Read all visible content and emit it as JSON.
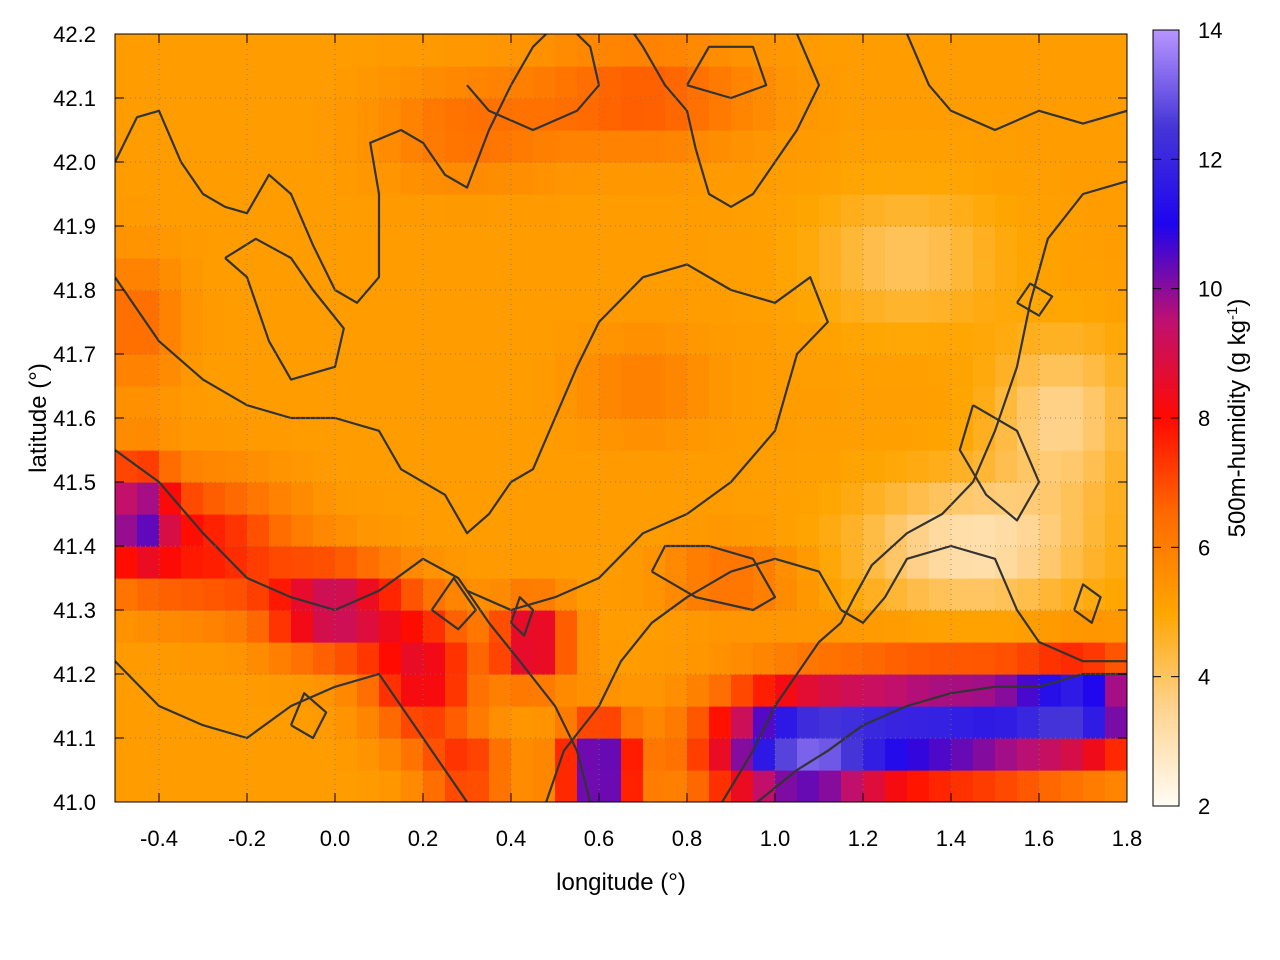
{
  "chart_data": {
    "type": "heatmap",
    "xlabel": "longitude (°)",
    "ylabel": "latitude (°)",
    "colorbar_label": "500m-humidity (g kg",
    "colorbar_label_sup": "-1",
    "colorbar_label_tail": ")",
    "xlim": [
      -0.5,
      1.8
    ],
    "ylim": [
      41.0,
      42.2
    ],
    "x_ticks": [
      -0.4,
      -0.2,
      0.0,
      0.2,
      0.4,
      0.6,
      0.8,
      1.0,
      1.2,
      1.4,
      1.6,
      1.8
    ],
    "x_tick_labels": [
      "-0.4",
      "-0.2",
      "0.0",
      "0.2",
      "0.4",
      "0.6",
      "0.8",
      "1.0",
      "1.2",
      "1.4",
      "1.6",
      "1.8"
    ],
    "y_ticks": [
      41.0,
      41.1,
      41.2,
      41.3,
      41.4,
      41.5,
      41.6,
      41.7,
      41.8,
      41.9,
      42.0,
      42.1,
      42.2
    ],
    "y_tick_labels": [
      "41.0",
      "41.1",
      "41.2",
      "41.3",
      "41.4",
      "41.5",
      "41.6",
      "41.7",
      "41.8",
      "41.9",
      "42.0",
      "42.1",
      "42.2"
    ],
    "colorbar_range": [
      2,
      14
    ],
    "colorbar_ticks": [
      2,
      4,
      6,
      8,
      10,
      12,
      14
    ],
    "colorbar_tick_labels": [
      "2",
      "4",
      "6",
      "8",
      "10",
      "12",
      "14"
    ],
    "colorbar_stops": [
      {
        "value": 2,
        "color": "#fffcf5"
      },
      {
        "value": 3.5,
        "color": "#ffd491"
      },
      {
        "value": 5,
        "color": "#ffa500"
      },
      {
        "value": 6.5,
        "color": "#ff6a00"
      },
      {
        "value": 8,
        "color": "#ff0a00"
      },
      {
        "value": 9.5,
        "color": "#bf1070"
      },
      {
        "value": 11,
        "color": "#1e05ee"
      },
      {
        "value": 12.5,
        "color": "#4636d7"
      },
      {
        "value": 14,
        "color": "#b895ff"
      }
    ],
    "grid": true,
    "field": {
      "base": 5.2,
      "blobs": [
        {
          "lon": -0.45,
          "lat": 41.45,
          "value": 9.5,
          "rlon": 0.08,
          "rlat": 0.08
        },
        {
          "lon": -0.3,
          "lat": 41.4,
          "value": 7.8,
          "rlon": 0.2,
          "rlat": 0.1
        },
        {
          "lon": 0.0,
          "lat": 41.3,
          "value": 9.5,
          "rlon": 0.15,
          "rlat": 0.07
        },
        {
          "lon": 0.2,
          "lat": 41.2,
          "value": 8.5,
          "rlon": 0.12,
          "rlat": 0.1
        },
        {
          "lon": 0.45,
          "lat": 41.25,
          "value": 9.5,
          "rlon": 0.08,
          "rlat": 0.06
        },
        {
          "lon": 0.6,
          "lat": 41.05,
          "value": 11.5,
          "rlon": 0.08,
          "rlat": 0.07
        },
        {
          "lon": 1.05,
          "lat": 41.08,
          "value": 11.8,
          "rlon": 0.2,
          "rlat": 0.09
        },
        {
          "lon": 1.4,
          "lat": 41.12,
          "value": 11.5,
          "rlon": 0.3,
          "rlat": 0.09
        },
        {
          "lon": 1.7,
          "lat": 41.15,
          "value": 10.5,
          "rlon": 0.15,
          "rlat": 0.07
        },
        {
          "lon": 1.45,
          "lat": 41.4,
          "value": 3.0,
          "rlon": 0.25,
          "rlat": 0.1
        },
        {
          "lon": 1.65,
          "lat": 41.6,
          "value": 3.5,
          "rlon": 0.15,
          "rlat": 0.12
        },
        {
          "lon": 1.3,
          "lat": 41.85,
          "value": 4.0,
          "rlon": 0.2,
          "rlat": 0.1
        },
        {
          "lon": 0.7,
          "lat": 42.1,
          "value": 6.8,
          "rlon": 0.25,
          "rlat": 0.08
        },
        {
          "lon": 0.3,
          "lat": 42.05,
          "value": 6.3,
          "rlon": 0.2,
          "rlat": 0.08
        },
        {
          "lon": -0.45,
          "lat": 41.75,
          "value": 6.5,
          "rlon": 0.1,
          "rlat": 0.1
        },
        {
          "lon": 0.7,
          "lat": 41.65,
          "value": 6.0,
          "rlon": 0.15,
          "rlat": 0.08
        },
        {
          "lon": 0.9,
          "lat": 41.35,
          "value": 6.5,
          "rlon": 0.15,
          "rlat": 0.05
        },
        {
          "lon": 0.3,
          "lat": 41.05,
          "value": 7.5,
          "rlon": 0.1,
          "rlat": 0.05
        }
      ]
    },
    "contours": [
      [
        [
          -0.5,
          42.0
        ],
        [
          -0.45,
          42.07
        ],
        [
          -0.4,
          42.08
        ],
        [
          -0.35,
          42.0
        ],
        [
          -0.3,
          41.95
        ],
        [
          -0.25,
          41.93
        ],
        [
          -0.2,
          41.92
        ],
        [
          -0.15,
          41.98
        ],
        [
          -0.1,
          41.95
        ],
        [
          -0.05,
          41.87
        ],
        [
          0.0,
          41.8
        ],
        [
          0.05,
          41.78
        ],
        [
          0.1,
          41.82
        ],
        [
          0.1,
          41.95
        ],
        [
          0.08,
          42.03
        ],
        [
          0.15,
          42.05
        ],
        [
          0.2,
          42.03
        ],
        [
          0.25,
          41.98
        ],
        [
          0.3,
          41.96
        ],
        [
          0.35,
          42.05
        ],
        [
          0.4,
          42.12
        ],
        [
          0.45,
          42.18
        ],
        [
          0.48,
          42.2
        ]
      ],
      [
        [
          -0.5,
          41.82
        ],
        [
          -0.4,
          41.72
        ],
        [
          -0.3,
          41.66
        ],
        [
          -0.2,
          41.62
        ],
        [
          -0.1,
          41.6
        ],
        [
          0.0,
          41.6
        ],
        [
          0.1,
          41.58
        ],
        [
          0.15,
          41.52
        ],
        [
          0.25,
          41.48
        ],
        [
          0.3,
          41.42
        ],
        [
          0.35,
          41.45
        ],
        [
          0.4,
          41.5
        ],
        [
          0.45,
          41.52
        ],
        [
          0.5,
          41.6
        ],
        [
          0.55,
          41.68
        ],
        [
          0.6,
          41.75
        ],
        [
          0.7,
          41.82
        ],
        [
          0.8,
          41.84
        ],
        [
          0.9,
          41.8
        ],
        [
          1.0,
          41.78
        ],
        [
          1.08,
          41.82
        ],
        [
          1.12,
          41.75
        ],
        [
          1.05,
          41.7
        ],
        [
          1.0,
          41.58
        ],
        [
          0.9,
          41.5
        ],
        [
          0.8,
          41.45
        ],
        [
          0.7,
          41.42
        ],
        [
          0.6,
          41.35
        ],
        [
          0.5,
          41.32
        ],
        [
          0.4,
          41.3
        ],
        [
          0.3,
          41.33
        ]
      ],
      [
        [
          -0.5,
          41.55
        ],
        [
          -0.4,
          41.5
        ],
        [
          -0.3,
          41.42
        ],
        [
          -0.2,
          41.35
        ],
        [
          -0.1,
          41.32
        ],
        [
          0.0,
          41.3
        ],
        [
          0.1,
          41.33
        ],
        [
          0.2,
          41.38
        ],
        [
          0.28,
          41.35
        ],
        [
          0.35,
          41.28
        ],
        [
          0.42,
          41.22
        ],
        [
          0.5,
          41.15
        ],
        [
          0.55,
          41.08
        ],
        [
          0.58,
          41.0
        ]
      ],
      [
        [
          -0.5,
          41.22
        ],
        [
          -0.4,
          41.15
        ],
        [
          -0.3,
          41.12
        ],
        [
          -0.2,
          41.1
        ],
        [
          -0.1,
          41.15
        ],
        [
          0.0,
          41.18
        ],
        [
          0.1,
          41.2
        ],
        [
          0.15,
          41.15
        ],
        [
          0.2,
          41.1
        ],
        [
          0.25,
          41.05
        ],
        [
          0.3,
          41.0
        ]
      ],
      [
        [
          0.48,
          41.0
        ],
        [
          0.52,
          41.08
        ],
        [
          0.6,
          41.15
        ],
        [
          0.65,
          41.22
        ],
        [
          0.72,
          41.28
        ],
        [
          0.8,
          41.32
        ],
        [
          0.9,
          41.36
        ],
        [
          1.0,
          41.38
        ],
        [
          1.1,
          41.36
        ],
        [
          1.15,
          41.3
        ],
        [
          1.2,
          41.28
        ],
        [
          1.25,
          41.32
        ],
        [
          1.3,
          41.38
        ],
        [
          1.4,
          41.4
        ],
        [
          1.5,
          41.38
        ],
        [
          1.55,
          41.3
        ],
        [
          1.6,
          41.25
        ],
        [
          1.7,
          41.22
        ],
        [
          1.8,
          41.22
        ]
      ],
      [
        [
          0.88,
          41.0
        ],
        [
          0.95,
          41.08
        ],
        [
          1.0,
          41.15
        ],
        [
          1.05,
          41.2
        ],
        [
          1.1,
          41.25
        ],
        [
          1.15,
          41.28
        ],
        [
          1.18,
          41.32
        ],
        [
          1.22,
          41.37
        ],
        [
          1.3,
          41.42
        ],
        [
          1.38,
          41.45
        ],
        [
          1.45,
          41.5
        ],
        [
          1.5,
          41.58
        ],
        [
          1.55,
          41.68
        ],
        [
          1.58,
          41.78
        ],
        [
          1.62,
          41.88
        ],
        [
          1.7,
          41.95
        ],
        [
          1.8,
          41.97
        ]
      ],
      [
        [
          0.96,
          41.0
        ],
        [
          1.05,
          41.05
        ],
        [
          1.12,
          41.08
        ],
        [
          1.2,
          41.12
        ],
        [
          1.3,
          41.15
        ],
        [
          1.4,
          41.17
        ],
        [
          1.5,
          41.18
        ],
        [
          1.6,
          41.18
        ],
        [
          1.7,
          41.2
        ],
        [
          1.8,
          41.2
        ]
      ],
      [
        [
          1.05,
          42.2
        ],
        [
          1.1,
          42.12
        ],
        [
          1.05,
          42.05
        ],
        [
          1.0,
          42.0
        ],
        [
          0.95,
          41.95
        ],
        [
          0.9,
          41.93
        ],
        [
          0.85,
          41.95
        ],
        [
          0.82,
          42.02
        ],
        [
          0.8,
          42.08
        ],
        [
          0.75,
          42.12
        ],
        [
          0.7,
          42.18
        ],
        [
          0.68,
          42.2
        ]
      ],
      [
        [
          0.3,
          42.12
        ],
        [
          0.35,
          42.08
        ],
        [
          0.45,
          42.05
        ],
        [
          0.55,
          42.08
        ],
        [
          0.6,
          42.12
        ],
        [
          0.58,
          42.18
        ],
        [
          0.55,
          42.2
        ]
      ],
      [
        [
          1.3,
          42.2
        ],
        [
          1.35,
          42.12
        ],
        [
          1.4,
          42.08
        ],
        [
          1.5,
          42.05
        ],
        [
          1.6,
          42.08
        ],
        [
          1.7,
          42.06
        ],
        [
          1.8,
          42.08
        ]
      ],
      [
        [
          -0.25,
          41.85
        ],
        [
          -0.2,
          41.82
        ],
        [
          -0.15,
          41.72
        ],
        [
          -0.1,
          41.66
        ],
        [
          0.0,
          41.68
        ],
        [
          0.02,
          41.74
        ],
        [
          -0.05,
          41.8
        ],
        [
          -0.1,
          41.85
        ],
        [
          -0.18,
          41.88
        ],
        [
          -0.25,
          41.85
        ]
      ],
      [
        [
          0.72,
          41.36
        ],
        [
          0.82,
          41.32
        ],
        [
          0.95,
          41.3
        ],
        [
          1.0,
          41.32
        ],
        [
          0.95,
          41.38
        ],
        [
          0.85,
          41.4
        ],
        [
          0.75,
          41.4
        ],
        [
          0.72,
          41.36
        ]
      ],
      [
        [
          1.45,
          41.62
        ],
        [
          1.55,
          41.58
        ],
        [
          1.6,
          41.5
        ],
        [
          1.55,
          41.44
        ],
        [
          1.48,
          41.48
        ],
        [
          1.42,
          41.55
        ],
        [
          1.45,
          41.62
        ]
      ],
      [
        [
          0.22,
          41.3
        ],
        [
          0.28,
          41.27
        ],
        [
          0.32,
          41.3
        ],
        [
          0.27,
          41.35
        ],
        [
          0.22,
          41.3
        ]
      ],
      [
        [
          0.8,
          42.12
        ],
        [
          0.9,
          42.1
        ],
        [
          0.98,
          42.12
        ],
        [
          0.95,
          42.18
        ],
        [
          0.85,
          42.18
        ],
        [
          0.8,
          42.12
        ]
      ],
      [
        [
          1.55,
          41.78
        ],
        [
          1.6,
          41.76
        ],
        [
          1.63,
          41.79
        ],
        [
          1.58,
          41.81
        ],
        [
          1.55,
          41.78
        ]
      ],
      [
        [
          -0.1,
          41.12
        ],
        [
          -0.05,
          41.1
        ],
        [
          -0.02,
          41.14
        ],
        [
          -0.07,
          41.17
        ],
        [
          -0.1,
          41.12
        ]
      ],
      [
        [
          0.4,
          41.28
        ],
        [
          0.43,
          41.26
        ],
        [
          0.45,
          41.3
        ],
        [
          0.42,
          41.32
        ],
        [
          0.4,
          41.28
        ]
      ],
      [
        [
          1.68,
          41.3
        ],
        [
          1.72,
          41.28
        ],
        [
          1.74,
          41.32
        ],
        [
          1.7,
          41.34
        ],
        [
          1.68,
          41.3
        ]
      ]
    ]
  }
}
